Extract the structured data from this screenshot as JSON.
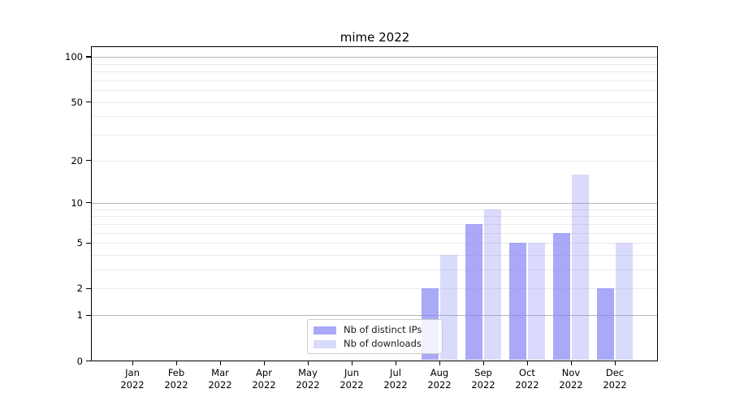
{
  "chart_data": {
    "type": "bar",
    "title": "mime 2022",
    "xlabel": "",
    "ylabel": "",
    "categories": [
      "Jan\n2022",
      "Feb\n2022",
      "Mar\n2022",
      "Apr\n2022",
      "May\n2022",
      "Jun\n2022",
      "Jul\n2022",
      "Aug\n2022",
      "Sep\n2022",
      "Oct\n2022",
      "Nov\n2022",
      "Dec\n2022"
    ],
    "series": [
      {
        "name": "Nb of distinct IPs",
        "color": "#8585f5",
        "alpha": 0.7,
        "values": [
          0,
          0,
          0,
          0,
          0,
          0,
          0,
          2,
          7,
          5,
          6,
          2
        ]
      },
      {
        "name": "Nb of downloads",
        "color": "#8585f5",
        "alpha": 0.3,
        "values": [
          0,
          0,
          0,
          0,
          0,
          0,
          0,
          4,
          9,
          5,
          16,
          5
        ]
      }
    ],
    "yscale": "log1p",
    "ylim": [
      0,
      117.6
    ],
    "y_tick_values": [
      0,
      1,
      2,
      5,
      10,
      20,
      50,
      100
    ],
    "y_major_gridlines": [
      1,
      10,
      100
    ],
    "y_minor_gridlines": [
      2,
      3,
      4,
      5,
      6,
      7,
      8,
      9,
      20,
      30,
      40,
      50,
      60,
      70,
      80,
      90
    ],
    "grid": "on",
    "legend_position": "lower center",
    "colors": {
      "bar_base": "#8585f5",
      "major_grid": "#b4b4b4",
      "minor_grid": "#eaeaea",
      "spine": "#000000",
      "background": "#ffffff"
    }
  }
}
